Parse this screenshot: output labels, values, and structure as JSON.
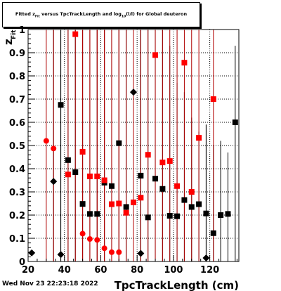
{
  "title": "Fitted z_{Fit} versus TpcTrackLength and log_{10}(l/l) for Global deuteron",
  "title_parts": {
    "prefix": "Fitted  z",
    "z_sub": "Fit",
    "middle": "  versus TpcTrackLength and log",
    "log_sub": "10",
    "suffix": "(l/l) for Global deuteron"
  },
  "datestamp": "Wed Nov 23 22:23:18 2022",
  "colors": {
    "black": "#000000",
    "red": "#ff0000",
    "darkred": "#b00000",
    "background": "#ffffff"
  },
  "chart_data": {
    "type": "scatter",
    "xlabel": "TpcTrackLength (cm)",
    "ylabel_main": "z",
    "ylabel_sub": "Fit",
    "xlim": [
      20,
      136
    ],
    "ylim": [
      0,
      1
    ],
    "grid": true,
    "x_ticks": [
      20,
      40,
      60,
      80,
      100,
      120
    ],
    "y_ticks": [
      0,
      0.1,
      0.2,
      0.3,
      0.4,
      0.5,
      0.6,
      0.7,
      0.8,
      0.9,
      1
    ],
    "y_tick_labels": [
      "0",
      "0.1",
      "0.2",
      "0.3",
      "0.4",
      "0.5",
      "0.6",
      "0.7",
      "0.8",
      "0.9",
      "1"
    ],
    "series": [
      {
        "color": "#000000",
        "points": [
          {
            "x": 22,
            "y": 0.037,
            "ylo": 0.025,
            "yhi": 0.05,
            "marker": "diamond"
          },
          {
            "x": 34,
            "y": 0.345,
            "ylo": 0.0,
            "yhi": 1.0,
            "marker": "diamond"
          },
          {
            "x": 38,
            "y": 0.03,
            "ylo": 0.0,
            "yhi": 1.0,
            "marker": "diamond"
          },
          {
            "x": 38,
            "y": 0.675,
            "ylo": 0.0,
            "yhi": 1.0,
            "marker": "square"
          },
          {
            "x": 42,
            "y": 0.437,
            "ylo": 0.0,
            "yhi": 1.0,
            "marker": "square"
          },
          {
            "x": 46,
            "y": 0.385,
            "ylo": 0.0,
            "yhi": 1.0,
            "marker": "square"
          },
          {
            "x": 50,
            "y": 0.248,
            "ylo": 0.0,
            "yhi": 1.0,
            "marker": "square"
          },
          {
            "x": 54,
            "y": 0.205,
            "ylo": 0.0,
            "yhi": 1.0,
            "marker": "square"
          },
          {
            "x": 58,
            "y": 0.205,
            "ylo": 0.0,
            "yhi": 1.0,
            "marker": "square"
          },
          {
            "x": 62,
            "y": 0.34,
            "ylo": 0.0,
            "yhi": 1.0,
            "marker": "square"
          },
          {
            "x": 66,
            "y": 0.325,
            "ylo": 0.0,
            "yhi": 1.0,
            "marker": "square"
          },
          {
            "x": 70,
            "y": 0.51,
            "ylo": 0.0,
            "yhi": 1.0,
            "marker": "square"
          },
          {
            "x": 74,
            "y": 0.235,
            "ylo": 0.0,
            "yhi": 1.0,
            "marker": "square"
          },
          {
            "x": 78,
            "y": 0.73,
            "ylo": 0.0,
            "yhi": 1.0,
            "marker": "diamond"
          },
          {
            "x": 82,
            "y": 0.37,
            "ylo": 0.0,
            "yhi": 1.0,
            "marker": "square"
          },
          {
            "x": 82,
            "y": 0.035,
            "ylo": 0.0,
            "yhi": 1.0,
            "marker": "diamond"
          },
          {
            "x": 86,
            "y": 0.19,
            "ylo": 0.0,
            "yhi": 1.0,
            "marker": "square"
          },
          {
            "x": 90,
            "y": 0.357,
            "ylo": 0.0,
            "yhi": 1.0,
            "marker": "square"
          },
          {
            "x": 94,
            "y": 0.313,
            "ylo": 0.0,
            "yhi": 1.0,
            "marker": "square"
          },
          {
            "x": 98,
            "y": 0.197,
            "ylo": 0.0,
            "yhi": 0.93,
            "marker": "square"
          },
          {
            "x": 102,
            "y": 0.195,
            "ylo": 0.0,
            "yhi": 0.77,
            "marker": "square"
          },
          {
            "x": 106,
            "y": 0.265,
            "ylo": 0.0,
            "yhi": 0.73,
            "marker": "square"
          },
          {
            "x": 110,
            "y": 0.235,
            "ylo": 0.0,
            "yhi": 0.62,
            "marker": "square"
          },
          {
            "x": 114,
            "y": 0.247,
            "ylo": 0.0,
            "yhi": 0.56,
            "marker": "square"
          },
          {
            "x": 118,
            "y": 0.207,
            "ylo": 0.0,
            "yhi": 0.59,
            "marker": "square"
          },
          {
            "x": 118,
            "y": 0.015,
            "ylo": 0.0,
            "yhi": 0.59,
            "marker": "diamond"
          },
          {
            "x": 122,
            "y": 0.122,
            "ylo": 0.0,
            "yhi": 0.5,
            "marker": "square"
          },
          {
            "x": 126,
            "y": 0.2,
            "ylo": 0.0,
            "yhi": 0.52,
            "marker": "square"
          },
          {
            "x": 130,
            "y": 0.205,
            "ylo": 0.0,
            "yhi": 0.47,
            "marker": "square"
          },
          {
            "x": 134,
            "y": 0.6,
            "ylo": 0.0,
            "yhi": 0.93,
            "marker": "square"
          }
        ]
      },
      {
        "color": "#ff0000",
        "points": [
          {
            "x": 30,
            "y": 0.52,
            "ylo": 0.0,
            "yhi": 1.0,
            "marker": "circle"
          },
          {
            "x": 34,
            "y": 0.487,
            "ylo": 0.0,
            "yhi": 1.0,
            "marker": "circle"
          },
          {
            "x": 42,
            "y": 0.375,
            "ylo": 0.0,
            "yhi": 1.0,
            "marker": "square"
          },
          {
            "x": 46,
            "y": 0.98,
            "ylo": 0.0,
            "yhi": 1.0,
            "marker": "square"
          },
          {
            "x": 50,
            "y": 0.473,
            "ylo": 0.0,
            "yhi": 1.0,
            "marker": "square"
          },
          {
            "x": 50,
            "y": 0.12,
            "ylo": 0.0,
            "yhi": 1.0,
            "marker": "circle"
          },
          {
            "x": 54,
            "y": 0.367,
            "ylo": 0.0,
            "yhi": 1.0,
            "marker": "square"
          },
          {
            "x": 54,
            "y": 0.097,
            "ylo": 0.0,
            "yhi": 1.0,
            "marker": "circle"
          },
          {
            "x": 58,
            "y": 0.367,
            "ylo": 0.0,
            "yhi": 1.0,
            "marker": "square"
          },
          {
            "x": 58,
            "y": 0.093,
            "ylo": 0.0,
            "yhi": 1.0,
            "marker": "circle"
          },
          {
            "x": 62,
            "y": 0.35,
            "ylo": 0.0,
            "yhi": 1.0,
            "marker": "square"
          },
          {
            "x": 62,
            "y": 0.057,
            "ylo": 0.0,
            "yhi": 1.0,
            "marker": "circle"
          },
          {
            "x": 66,
            "y": 0.247,
            "ylo": 0.0,
            "yhi": 1.0,
            "marker": "square"
          },
          {
            "x": 66,
            "y": 0.04,
            "ylo": 0.0,
            "yhi": 1.0,
            "marker": "circle"
          },
          {
            "x": 70,
            "y": 0.25,
            "ylo": 0.0,
            "yhi": 1.0,
            "marker": "square"
          },
          {
            "x": 70,
            "y": 0.04,
            "ylo": 0.0,
            "yhi": 1.0,
            "marker": "circle"
          },
          {
            "x": 74,
            "y": 0.21,
            "ylo": 0.0,
            "yhi": 1.0,
            "marker": "square"
          },
          {
            "x": 78,
            "y": 0.255,
            "ylo": 0.0,
            "yhi": 1.0,
            "marker": "square"
          },
          {
            "x": 82,
            "y": 0.275,
            "ylo": 0.0,
            "yhi": 1.0,
            "marker": "square"
          },
          {
            "x": 86,
            "y": 0.46,
            "ylo": 0.0,
            "yhi": 1.0,
            "marker": "square"
          },
          {
            "x": 90,
            "y": 0.89,
            "ylo": 0.0,
            "yhi": 1.0,
            "marker": "square"
          },
          {
            "x": 94,
            "y": 0.427,
            "ylo": 0.0,
            "yhi": 1.0,
            "marker": "square"
          },
          {
            "x": 98,
            "y": 0.433,
            "ylo": 0.0,
            "yhi": 1.0,
            "marker": "square"
          },
          {
            "x": 102,
            "y": 0.325,
            "ylo": 0.0,
            "yhi": 1.0,
            "marker": "square"
          },
          {
            "x": 106,
            "y": 0.857,
            "ylo": 0.0,
            "yhi": 1.0,
            "marker": "square"
          },
          {
            "x": 110,
            "y": 0.3,
            "ylo": 0.0,
            "yhi": 1.0,
            "marker": "square"
          },
          {
            "x": 114,
            "y": 0.533,
            "ylo": 0.0,
            "yhi": 1.0,
            "marker": "square"
          },
          {
            "x": 122,
            "y": 0.7,
            "ylo": 0.0,
            "yhi": 1.0,
            "marker": "square"
          }
        ]
      }
    ]
  }
}
